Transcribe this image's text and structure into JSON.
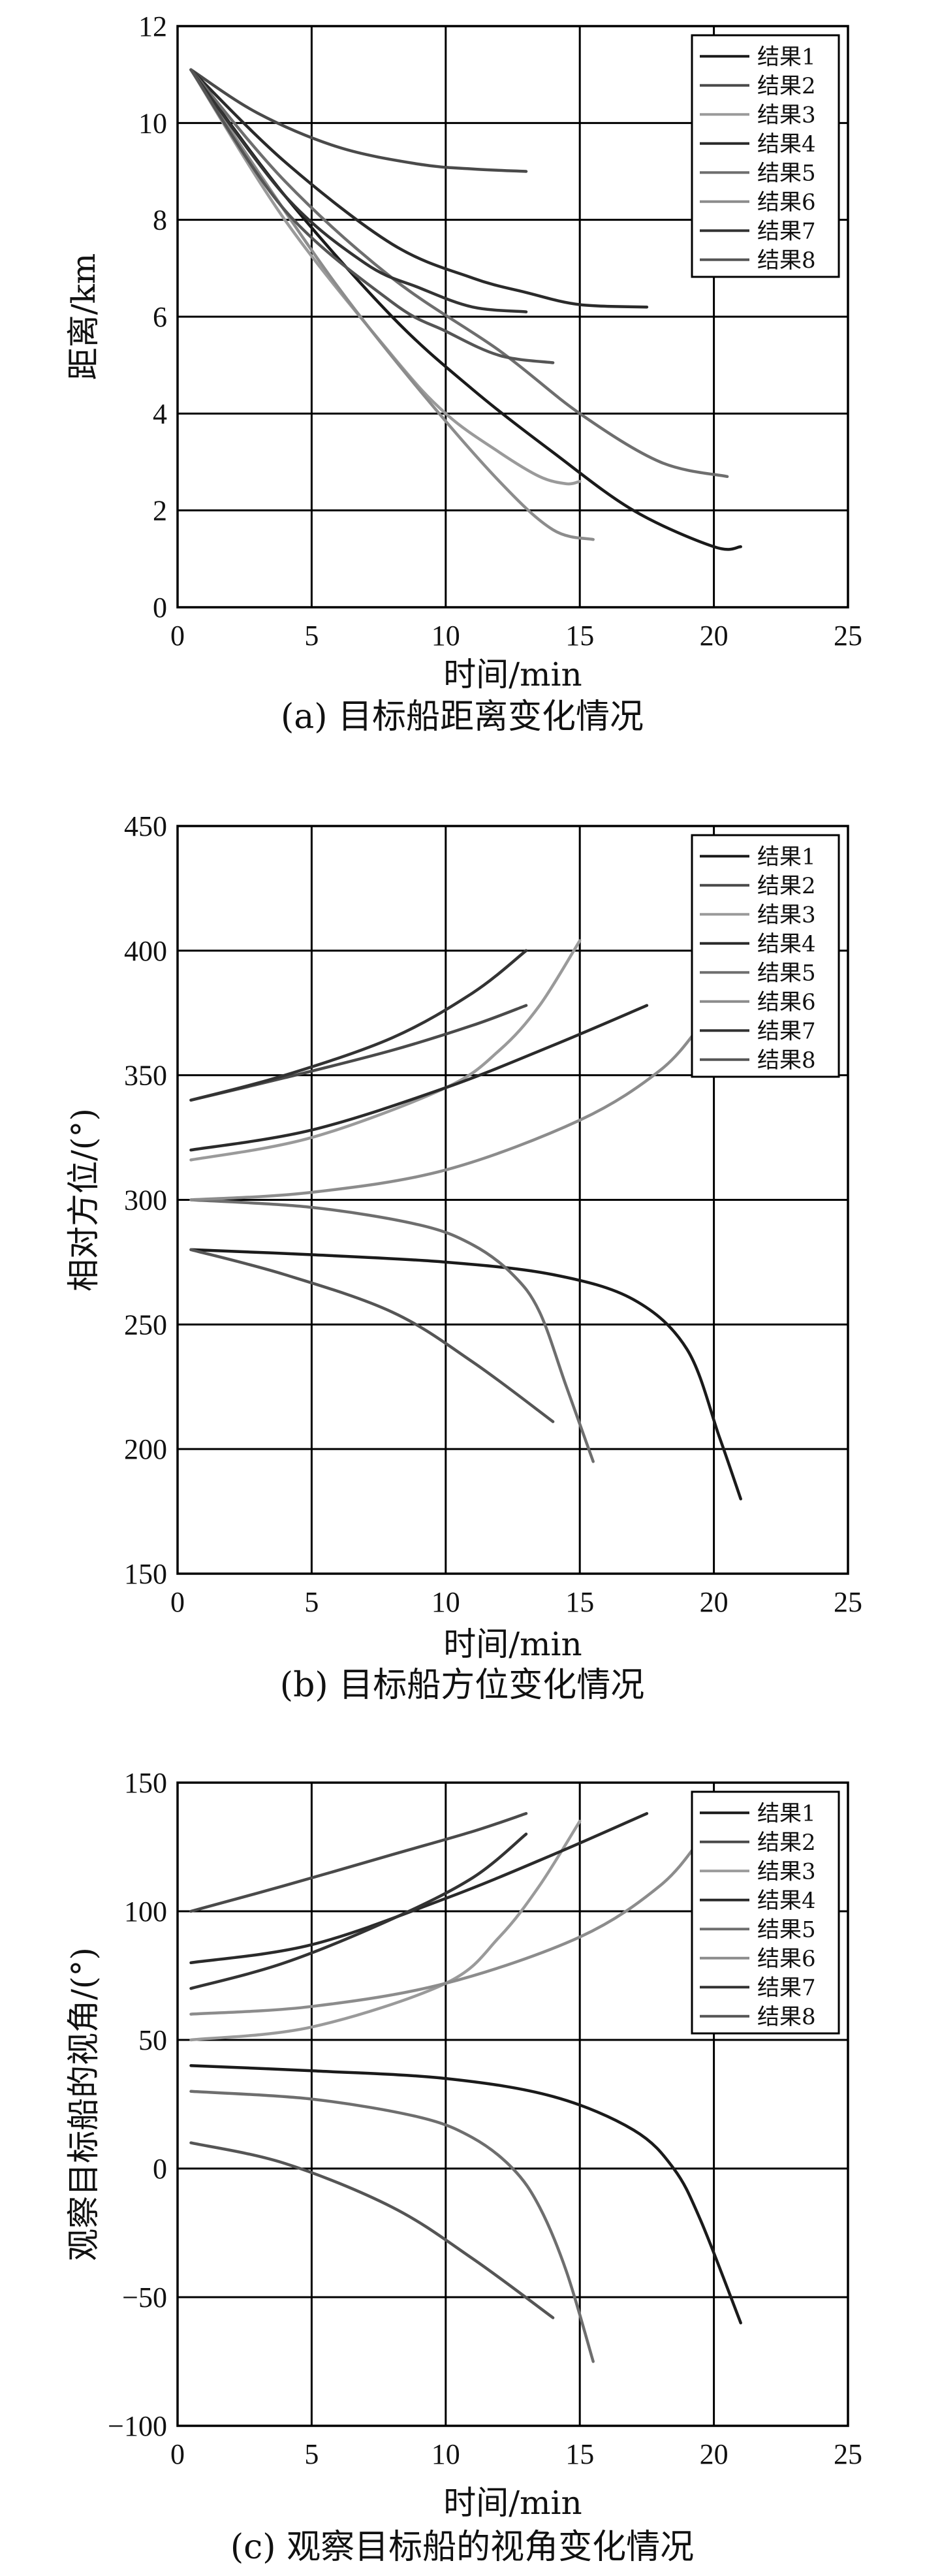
{
  "chart_data": [
    {
      "type": "line",
      "caption": "(a) 目标船距离变化情况",
      "xlabel": "时间/min",
      "ylabel": "距离/km",
      "xlim": [
        0,
        25
      ],
      "ylim": [
        0,
        12
      ],
      "xticks": [
        0,
        5,
        10,
        15,
        20,
        25
      ],
      "yticks": [
        0,
        2,
        4,
        6,
        8,
        10,
        12
      ],
      "grid": true,
      "legend": "top-right",
      "colors": [
        "#1a1a1a",
        "#4a4a4a",
        "#9a9a9a",
        "#2a2a2a",
        "#6e6e6e",
        "#8c8c8c",
        "#333333",
        "#555555"
      ],
      "series": [
        {
          "name": "结果1",
          "x": [
            0.5,
            4,
            8,
            11,
            14,
            17,
            20,
            21
          ],
          "y": [
            11.1,
            8.5,
            6.0,
            4.5,
            3.2,
            2.0,
            1.25,
            1.25
          ]
        },
        {
          "name": "结果2",
          "x": [
            0.5,
            3,
            6,
            9,
            11,
            13
          ],
          "y": [
            11.1,
            10.2,
            9.5,
            9.15,
            9.05,
            9.0
          ]
        },
        {
          "name": "结果3",
          "x": [
            0.5,
            4,
            8,
            10,
            12,
            13.5,
            14.5,
            15
          ],
          "y": [
            11.1,
            8.0,
            5.2,
            4.0,
            3.2,
            2.7,
            2.55,
            2.6
          ]
        },
        {
          "name": "结果4",
          "x": [
            0.5,
            4,
            8,
            11,
            13,
            15,
            17.5
          ],
          "y": [
            11.1,
            9.2,
            7.5,
            6.8,
            6.5,
            6.25,
            6.2
          ]
        },
        {
          "name": "结果5",
          "x": [
            0.5,
            4,
            8,
            12,
            15,
            18,
            20.5
          ],
          "y": [
            11.1,
            8.8,
            6.8,
            5.3,
            4.0,
            3.0,
            2.7
          ]
        },
        {
          "name": "结果6",
          "x": [
            0.5,
            3,
            6,
            9,
            12,
            14,
            15.5
          ],
          "y": [
            11.1,
            9.0,
            6.6,
            4.5,
            2.6,
            1.6,
            1.4
          ]
        },
        {
          "name": "结果7",
          "x": [
            0.5,
            4,
            7,
            9,
            11,
            13
          ],
          "y": [
            11.1,
            8.5,
            7.1,
            6.6,
            6.2,
            6.1
          ]
        },
        {
          "name": "结果8",
          "x": [
            0.5,
            4,
            8,
            10,
            12,
            14
          ],
          "y": [
            11.1,
            8.2,
            6.3,
            5.7,
            5.2,
            5.05
          ]
        }
      ]
    },
    {
      "type": "line",
      "caption": "(b) 目标船方位变化情况",
      "xlabel": "时间/min",
      "ylabel": "相对方位/(°)",
      "xlim": [
        0,
        25
      ],
      "ylim": [
        150,
        450
      ],
      "xticks": [
        0,
        5,
        10,
        15,
        20,
        25
      ],
      "yticks": [
        150,
        200,
        250,
        300,
        350,
        400,
        450
      ],
      "grid": true,
      "legend": "top-right",
      "colors": [
        "#1a1a1a",
        "#4a4a4a",
        "#9a9a9a",
        "#2a2a2a",
        "#6e6e6e",
        "#8c8c8c",
        "#333333",
        "#555555"
      ],
      "series": [
        {
          "name": "结果1",
          "x": [
            0.5,
            5,
            10,
            14,
            17,
            19,
            20.2,
            21
          ],
          "y": [
            280,
            278,
            275,
            270,
            260,
            240,
            205,
            180
          ]
        },
        {
          "name": "结果2",
          "x": [
            0.5,
            4,
            8,
            11,
            13
          ],
          "y": [
            340,
            349,
            360,
            370,
            378
          ]
        },
        {
          "name": "结果3",
          "x": [
            0.5,
            5,
            10,
            12,
            13.5,
            15
          ],
          "y": [
            316,
            325,
            345,
            360,
            378,
            404
          ]
        },
        {
          "name": "结果4",
          "x": [
            0.5,
            5,
            10,
            14,
            17.5
          ],
          "y": [
            320,
            328,
            345,
            362,
            378
          ]
        },
        {
          "name": "结果5",
          "x": [
            0.5,
            5,
            9,
            11,
            12.5,
            13.5,
            14.5,
            15.5
          ],
          "y": [
            300,
            297,
            290,
            282,
            270,
            255,
            225,
            195
          ]
        },
        {
          "name": "结果6",
          "x": [
            0.5,
            5,
            10,
            15,
            18,
            19.5
          ],
          "y": [
            300,
            303,
            312,
            332,
            352,
            370
          ]
        },
        {
          "name": "结果7",
          "x": [
            0.5,
            4,
            8,
            11,
            13
          ],
          "y": [
            340,
            350,
            365,
            383,
            400
          ]
        },
        {
          "name": "结果8",
          "x": [
            0.5,
            4,
            8,
            11,
            14
          ],
          "y": [
            280,
            270,
            255,
            235,
            211
          ]
        }
      ]
    },
    {
      "type": "line",
      "caption": "(c) 观察目标船的视角变化情况",
      "xlabel": "时间/min",
      "ylabel": "观察目标船的视角/(°)",
      "xlim": [
        0,
        25
      ],
      "ylim": [
        -100,
        150
      ],
      "xticks": [
        0,
        5,
        10,
        15,
        20,
        25
      ],
      "yticks": [
        -100,
        -50,
        0,
        50,
        100,
        150
      ],
      "ytick_labels": [
        "−100",
        "−50",
        "0",
        "50",
        "100",
        "150"
      ],
      "grid": true,
      "legend": "top-right",
      "colors": [
        "#1a1a1a",
        "#4a4a4a",
        "#9a9a9a",
        "#2a2a2a",
        "#6e6e6e",
        "#8c8c8c",
        "#333333",
        "#555555"
      ],
      "series": [
        {
          "name": "结果1",
          "x": [
            0.5,
            5,
            10,
            14,
            17,
            18.5,
            19.5,
            21
          ],
          "y": [
            40,
            38,
            35,
            28,
            15,
            0,
            -20,
            -60
          ]
        },
        {
          "name": "结果2",
          "x": [
            0.5,
            4,
            8,
            11,
            13
          ],
          "y": [
            100,
            110,
            122,
            131,
            138
          ]
        },
        {
          "name": "结果3",
          "x": [
            0.5,
            5,
            10,
            12,
            13.5,
            15
          ],
          "y": [
            50,
            55,
            72,
            90,
            110,
            135
          ]
        },
        {
          "name": "结果4",
          "x": [
            0.5,
            5,
            10,
            14,
            17.5
          ],
          "y": [
            80,
            87,
            105,
            122,
            138
          ]
        },
        {
          "name": "结果5",
          "x": [
            0.5,
            5,
            9,
            11,
            12.5,
            13.5,
            14.5,
            15.5
          ],
          "y": [
            30,
            27,
            20,
            12,
            0,
            -15,
            -40,
            -75
          ]
        },
        {
          "name": "结果6",
          "x": [
            0.5,
            5,
            10,
            15,
            18,
            19.5
          ],
          "y": [
            60,
            63,
            72,
            90,
            110,
            128
          ]
        },
        {
          "name": "结果7",
          "x": [
            0.5,
            4,
            8,
            11,
            13
          ],
          "y": [
            70,
            80,
            97,
            113,
            130
          ]
        },
        {
          "name": "结果8",
          "x": [
            0.5,
            4,
            8,
            11,
            14
          ],
          "y": [
            10,
            2,
            -15,
            -35,
            -58
          ]
        }
      ]
    }
  ]
}
